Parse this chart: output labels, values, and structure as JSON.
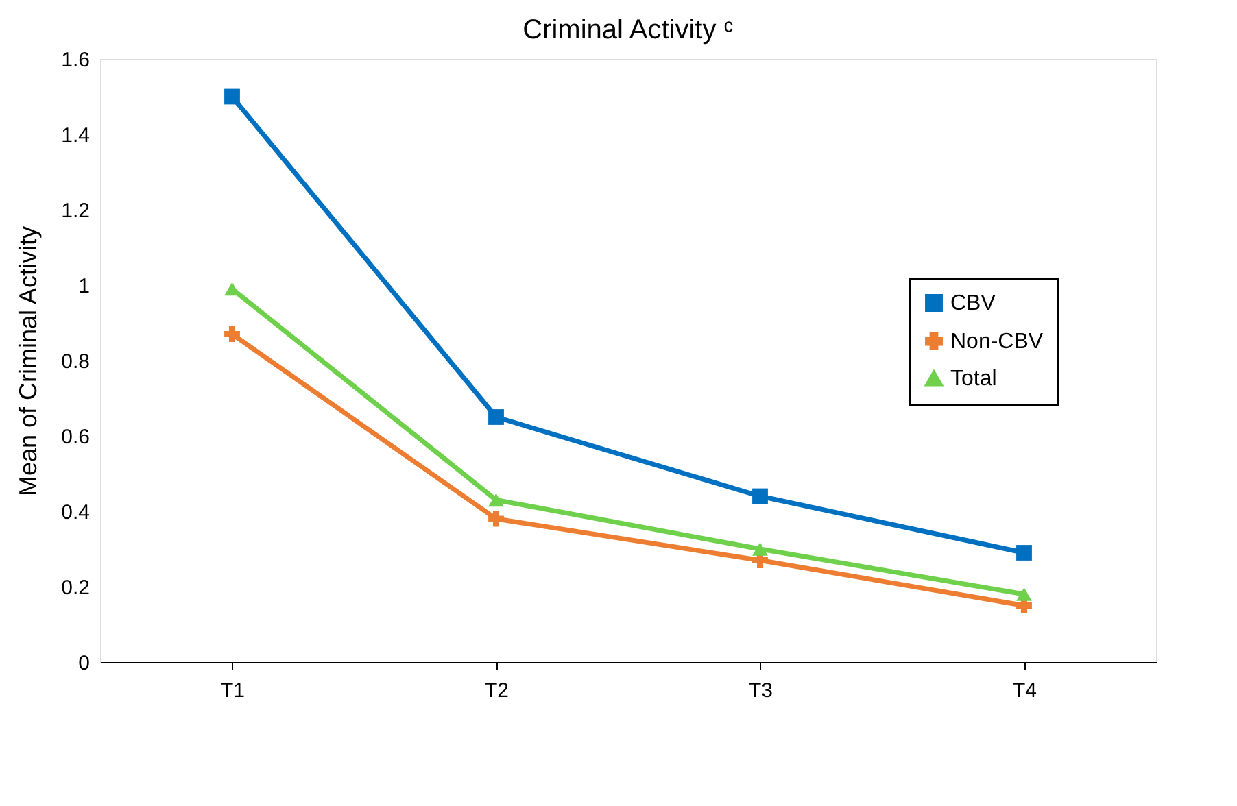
{
  "chart_data": {
    "type": "line",
    "title": "Criminal Activity ᶜ",
    "ylabel": "Mean of Criminal Activity",
    "categories": [
      "T1",
      "T2",
      "T3",
      "T4"
    ],
    "series": [
      {
        "name": "CBV",
        "color": "#0070c0",
        "marker": "square",
        "values": [
          1.5,
          0.65,
          0.44,
          0.29
        ]
      },
      {
        "name": "Non-CBV",
        "color": "#ed7d31",
        "marker": "cross",
        "values": [
          0.87,
          0.38,
          0.27,
          0.15
        ]
      },
      {
        "name": "Total",
        "color": "#6fd04c",
        "marker": "triangle",
        "values": [
          0.99,
          0.43,
          0.3,
          0.18
        ]
      }
    ],
    "ylim": [
      0,
      1.6
    ],
    "yticks": [
      0,
      0.2,
      0.4,
      0.6,
      0.8,
      1,
      1.2,
      1.4,
      1.6
    ],
    "grid": false,
    "legend": "right",
    "line_style": "solid"
  }
}
